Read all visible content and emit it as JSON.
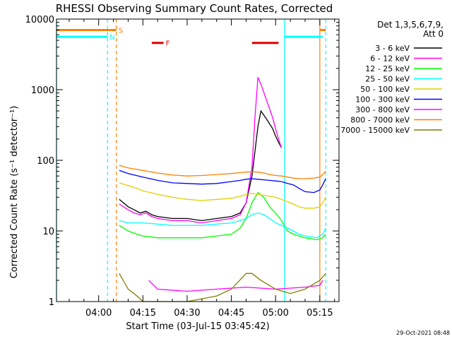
{
  "chart_data": {
    "type": "line",
    "title": "RHESSI Observing Summary Count Rates, Corrected",
    "xlabel": "Start Time (03-Jul-15 03:45:42)",
    "ylabel": "Corrected Count Rate (s⁻¹ detector⁻¹)",
    "y_scale": "log",
    "ylim": [
      1,
      10000
    ],
    "xlim": [
      "03:45:42",
      "05:21:30"
    ],
    "x_ticks": [
      "04:00",
      "04:15",
      "04:30",
      "04:45",
      "05:00",
      "05:15"
    ],
    "y_ticks": [
      "1",
      "10",
      "100",
      "1000",
      "10000"
    ],
    "legend_header": [
      "Det 1,3,5,6,7,9,",
      "Att 0"
    ],
    "legend_position": "right",
    "flags": [
      {
        "label": "S",
        "color": "#ff8000",
        "y": 7000,
        "segments": [
          [
            "03:45:42",
            "04:06"
          ],
          [
            "05:15",
            "05:17"
          ]
        ]
      },
      {
        "label": "N",
        "color": "#00ffff",
        "y": 5600,
        "segments": [
          [
            "03:45:42",
            "04:03"
          ],
          [
            "05:03",
            "05:16"
          ]
        ]
      },
      {
        "label": "F",
        "color": "#e00000",
        "y": 4600,
        "segments": [
          [
            "04:18",
            "04:22"
          ],
          [
            "04:52",
            "05:01"
          ]
        ]
      }
    ],
    "vlines": [
      {
        "time": "03:45:42",
        "color": "#00ffff",
        "style": "solid"
      },
      {
        "time": "04:03",
        "color": "#00ffff",
        "style": "dashed"
      },
      {
        "time": "04:06",
        "color": "#ff8000",
        "style": "dashed"
      },
      {
        "time": "05:03",
        "color": "#00ffff",
        "style": "solid"
      },
      {
        "time": "05:15",
        "color": "#ff8000",
        "style": "solid"
      },
      {
        "time": "05:17",
        "color": "#00ffff",
        "style": "dashed"
      }
    ],
    "series": [
      {
        "name": "3 - 6 keV",
        "color": "#000000",
        "points": [
          [
            "04:07",
            28
          ],
          [
            "04:10",
            22
          ],
          [
            "04:12",
            20
          ],
          [
            "04:14",
            18
          ],
          [
            "04:16",
            19
          ],
          [
            "04:18",
            17
          ],
          [
            "04:20",
            16
          ],
          [
            "04:25",
            15
          ],
          [
            "04:30",
            15
          ],
          [
            "04:35",
            14
          ],
          [
            "04:40",
            15
          ],
          [
            "04:45",
            16
          ],
          [
            "04:48",
            18
          ],
          [
            "04:50",
            25
          ],
          [
            "04:52",
            60
          ],
          [
            "04:54",
            300
          ],
          [
            "04:55",
            500
          ],
          [
            "04:57",
            380
          ],
          [
            "04:59",
            280
          ],
          [
            "05:00",
            220
          ],
          [
            "05:01",
            180
          ],
          [
            "05:02",
            150
          ]
        ]
      },
      {
        "name": "6 - 12 keV",
        "color": "#ff00ff",
        "points": [
          [
            "04:07",
            24
          ],
          [
            "04:10",
            20
          ],
          [
            "04:12",
            18
          ],
          [
            "04:14",
            17
          ],
          [
            "04:16",
            18
          ],
          [
            "04:18",
            16
          ],
          [
            "04:20",
            15
          ],
          [
            "04:25",
            14
          ],
          [
            "04:30",
            14
          ],
          [
            "04:35",
            13
          ],
          [
            "04:40",
            14
          ],
          [
            "04:45",
            15
          ],
          [
            "04:48",
            17
          ],
          [
            "04:50",
            25
          ],
          [
            "04:52",
            80
          ],
          [
            "04:53",
            400
          ],
          [
            "04:54",
            1500
          ],
          [
            "04:55",
            1200
          ],
          [
            "04:57",
            700
          ],
          [
            "04:59",
            400
          ],
          [
            "05:00",
            280
          ],
          [
            "05:01",
            200
          ],
          [
            "05:02",
            150
          ]
        ]
      },
      {
        "name": "12 - 25 keV",
        "color": "#00ff00",
        "points": [
          [
            "04:07",
            12
          ],
          [
            "04:10",
            10
          ],
          [
            "04:13",
            9
          ],
          [
            "04:15",
            8.5
          ],
          [
            "04:20",
            8
          ],
          [
            "04:25",
            8
          ],
          [
            "04:30",
            8
          ],
          [
            "04:35",
            8
          ],
          [
            "04:40",
            8.5
          ],
          [
            "04:45",
            9
          ],
          [
            "04:48",
            11
          ],
          [
            "04:50",
            15
          ],
          [
            "04:52",
            25
          ],
          [
            "04:54",
            35
          ],
          [
            "04:56",
            30
          ],
          [
            "04:58",
            22
          ],
          [
            "05:00",
            18
          ],
          [
            "05:02",
            14
          ],
          [
            "05:04",
            10
          ],
          [
            "05:06",
            9
          ],
          [
            "05:10",
            8
          ],
          [
            "05:14",
            7.5
          ],
          [
            "05:16",
            8
          ],
          [
            "05:17",
            9
          ]
        ]
      },
      {
        "name": "25 - 50 keV",
        "color": "#00ffff",
        "points": [
          [
            "04:07",
            14
          ],
          [
            "04:10",
            13
          ],
          [
            "04:15",
            13
          ],
          [
            "04:20",
            12.5
          ],
          [
            "04:25",
            12
          ],
          [
            "04:30",
            12
          ],
          [
            "04:35",
            12
          ],
          [
            "04:40",
            12.5
          ],
          [
            "04:45",
            13
          ],
          [
            "04:48",
            14
          ],
          [
            "04:50",
            15
          ],
          [
            "04:52",
            17
          ],
          [
            "04:54",
            18
          ],
          [
            "04:56",
            17
          ],
          [
            "04:58",
            15
          ],
          [
            "05:00",
            13
          ],
          [
            "05:02",
            12
          ],
          [
            "05:04",
            11
          ],
          [
            "05:06",
            10
          ],
          [
            "05:08",
            9
          ],
          [
            "05:10",
            8.5
          ],
          [
            "05:14",
            8
          ],
          [
            "05:16",
            9
          ],
          [
            "05:17",
            11
          ]
        ]
      },
      {
        "name": "50 - 100 keV",
        "color": "#e0d000",
        "points": [
          [
            "04:07",
            48
          ],
          [
            "04:10",
            44
          ],
          [
            "04:13",
            40
          ],
          [
            "04:15",
            37
          ],
          [
            "04:20",
            33
          ],
          [
            "04:25",
            30
          ],
          [
            "04:30",
            28
          ],
          [
            "04:35",
            27
          ],
          [
            "04:40",
            28
          ],
          [
            "04:45",
            29
          ],
          [
            "04:48",
            31
          ],
          [
            "04:50",
            33
          ],
          [
            "04:52",
            34
          ],
          [
            "04:54",
            33
          ],
          [
            "04:56",
            32
          ],
          [
            "04:58",
            31
          ],
          [
            "05:00",
            30
          ],
          [
            "05:02",
            28
          ],
          [
            "05:04",
            26
          ],
          [
            "05:06",
            24
          ],
          [
            "05:08",
            22
          ],
          [
            "05:10",
            21
          ],
          [
            "05:13",
            21
          ],
          [
            "05:15",
            22
          ],
          [
            "05:16",
            25
          ],
          [
            "05:17",
            30
          ]
        ]
      },
      {
        "name": "100 - 300 keV",
        "color": "#0000ff",
        "points": [
          [
            "04:07",
            72
          ],
          [
            "04:10",
            65
          ],
          [
            "04:15",
            58
          ],
          [
            "04:20",
            52
          ],
          [
            "04:25",
            48
          ],
          [
            "04:30",
            47
          ],
          [
            "04:35",
            46
          ],
          [
            "04:40",
            47
          ],
          [
            "04:45",
            50
          ],
          [
            "04:48",
            52
          ],
          [
            "04:50",
            54
          ],
          [
            "04:52",
            55
          ],
          [
            "04:54",
            54
          ],
          [
            "04:56",
            53
          ],
          [
            "04:58",
            52
          ],
          [
            "05:00",
            51
          ],
          [
            "05:02",
            50
          ],
          [
            "05:04",
            47
          ],
          [
            "05:06",
            45
          ],
          [
            "05:08",
            40
          ],
          [
            "05:10",
            36
          ],
          [
            "05:13",
            35
          ],
          [
            "05:15",
            38
          ],
          [
            "05:16",
            45
          ],
          [
            "05:17",
            55
          ]
        ]
      },
      {
        "name": "300 - 800 keV",
        "color": "#ff00ff",
        "points": [
          [
            "04:17",
            2
          ],
          [
            "04:20",
            1.5
          ],
          [
            "04:30",
            1.4
          ],
          [
            "04:40",
            1.5
          ],
          [
            "04:50",
            1.6
          ],
          [
            "05:00",
            1.5
          ],
          [
            "05:10",
            1.6
          ],
          [
            "05:15",
            1.7
          ],
          [
            "05:16",
            2
          ]
        ]
      },
      {
        "name": "800 - 7000 keV",
        "color": "#ff8000",
        "points": [
          [
            "04:07",
            85
          ],
          [
            "04:10",
            78
          ],
          [
            "04:15",
            72
          ],
          [
            "04:20",
            66
          ],
          [
            "04:25",
            62
          ],
          [
            "04:30",
            60
          ],
          [
            "04:35",
            61
          ],
          [
            "04:40",
            63
          ],
          [
            "04:45",
            65
          ],
          [
            "04:48",
            67
          ],
          [
            "04:50",
            68
          ],
          [
            "04:52",
            69
          ],
          [
            "04:54",
            68
          ],
          [
            "04:56",
            66
          ],
          [
            "04:58",
            63
          ],
          [
            "05:00",
            61
          ],
          [
            "05:02",
            60
          ],
          [
            "05:04",
            58
          ],
          [
            "05:06",
            56
          ],
          [
            "05:08",
            55
          ],
          [
            "05:10",
            55
          ],
          [
            "05:13",
            56
          ],
          [
            "05:15",
            58
          ],
          [
            "05:16",
            63
          ],
          [
            "05:17",
            70
          ]
        ]
      },
      {
        "name": "7000 - 15000 keV",
        "color": "#808000",
        "points": [
          [
            "04:07",
            2.5
          ],
          [
            "04:10",
            1.5
          ],
          [
            "04:13",
            1.2
          ],
          [
            "04:15",
            1
          ],
          [
            "04:20",
            1
          ],
          [
            "04:30",
            1
          ],
          [
            "04:40",
            1.2
          ],
          [
            "04:45",
            1.5
          ],
          [
            "04:50",
            2.5
          ],
          [
            "04:52",
            2.5
          ],
          [
            "04:55",
            2
          ],
          [
            "05:00",
            1.5
          ],
          [
            "05:05",
            1.3
          ],
          [
            "05:10",
            1.5
          ],
          [
            "05:15",
            2
          ],
          [
            "05:17",
            2.5
          ]
        ]
      }
    ],
    "bottom_right_note": "29-Oct-2021 08:48"
  }
}
